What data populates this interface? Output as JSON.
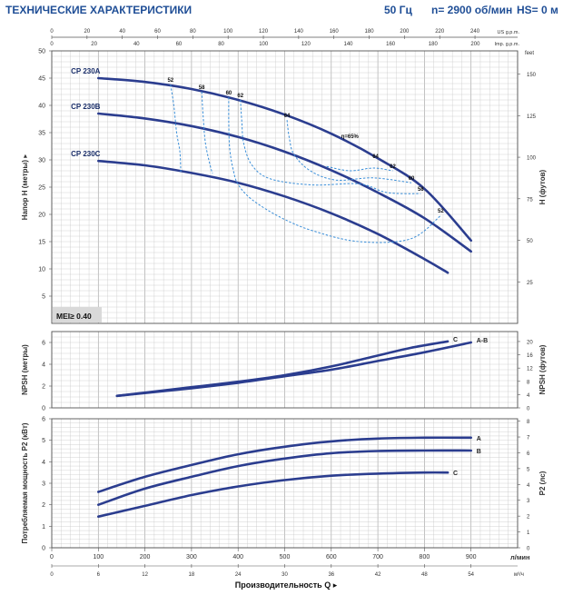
{
  "header": {
    "title": "ТЕХНИЧЕСКИЕ ХАРАКТЕРИСТИКИ",
    "frequency": "50 Гц",
    "speed": "n= 2900 об/мин",
    "hs": "HS= 0 м"
  },
  "chart_data": [
    {
      "type": "line",
      "name": "head",
      "ylabel": "Напор H (метры)",
      "ylabel_right": "H (футов)",
      "ylim": [
        0,
        50
      ],
      "yticks": [
        5,
        10,
        15,
        20,
        25,
        30,
        35,
        40,
        45,
        50
      ],
      "ylim_right": [
        0,
        164
      ],
      "yticks_right": [
        25,
        50,
        75,
        100,
        125,
        150
      ],
      "xlim": [
        0,
        1000
      ],
      "top_axis_us": {
        "unit": "US g.p.m.",
        "ticks": [
          0,
          20,
          40,
          60,
          80,
          100,
          120,
          140,
          160,
          180,
          200,
          220,
          240
        ]
      },
      "top_axis_imp": {
        "unit": "Imp. g.p.m.",
        "ticks": [
          0,
          20,
          40,
          60,
          80,
          100,
          120,
          140,
          160,
          180,
          200
        ]
      },
      "annotation": "MEI≥ 0.40",
      "series": [
        {
          "name": "CP 230A",
          "x": [
            100,
            200,
            300,
            400,
            500,
            600,
            700,
            800,
            900
          ],
          "y": [
            45.0,
            44.3,
            43.0,
            41.0,
            38.3,
            34.8,
            30.3,
            24.7,
            15.2
          ]
        },
        {
          "name": "CP 230B",
          "x": [
            100,
            200,
            300,
            400,
            500,
            600,
            700,
            800,
            900
          ],
          "y": [
            38.5,
            37.6,
            36.2,
            34.2,
            31.5,
            28.1,
            24.0,
            19.3,
            13.2
          ]
        },
        {
          "name": "CP 230C",
          "x": [
            100,
            200,
            300,
            400,
            500,
            600,
            700,
            800,
            850
          ],
          "y": [
            29.8,
            29.0,
            27.6,
            25.8,
            23.3,
            20.2,
            16.4,
            11.8,
            9.3
          ]
        }
      ],
      "efficiency_labels": [
        {
          "label": "52",
          "x": 255,
          "y": 43.8
        },
        {
          "label": "58",
          "x": 322,
          "y": 42.5
        },
        {
          "label": "60",
          "x": 380,
          "y": 41.5
        },
        {
          "label": "62",
          "x": 405,
          "y": 41.0
        },
        {
          "label": "64",
          "x": 505,
          "y": 37.3
        },
        {
          "label": "η=65%",
          "x": 640,
          "y": 33.5
        },
        {
          "label": "64",
          "x": 695,
          "y": 29.8
        },
        {
          "label": "62",
          "x": 732,
          "y": 28.0
        },
        {
          "label": "60",
          "x": 772,
          "y": 25.8
        },
        {
          "label": "58",
          "x": 792,
          "y": 23.8
        },
        {
          "label": "52",
          "x": 835,
          "y": 19.8
        }
      ],
      "efficiency_curves": [
        [
          [
            255,
            43.8
          ],
          [
            262,
            40
          ],
          [
            268,
            35
          ],
          [
            275,
            31.5
          ],
          [
            277,
            27.8
          ]
        ],
        [
          [
            322,
            42.5
          ],
          [
            325,
            38
          ],
          [
            330,
            33
          ],
          [
            340,
            29
          ],
          [
            345,
            27.5
          ]
        ],
        [
          [
            380,
            41.5
          ],
          [
            380,
            37
          ],
          [
            382,
            32
          ],
          [
            390,
            28
          ],
          [
            400,
            25.5
          ],
          [
            430,
            22.7
          ],
          [
            490,
            19.5
          ],
          [
            560,
            17
          ],
          [
            660,
            15
          ],
          [
            770,
            15.5
          ],
          [
            835,
            19.8
          ]
        ],
        [
          [
            405,
            41.0
          ],
          [
            408,
            37
          ],
          [
            412,
            33
          ],
          [
            430,
            29
          ],
          [
            470,
            26.5
          ],
          [
            560,
            25.4
          ],
          [
            660,
            25.6
          ],
          [
            720,
            24
          ],
          [
            792,
            23.8
          ]
        ],
        [
          [
            505,
            37.3
          ],
          [
            510,
            34
          ],
          [
            520,
            31
          ],
          [
            555,
            28
          ],
          [
            610,
            26.3
          ],
          [
            690,
            26.7
          ],
          [
            772,
            25.8
          ]
        ],
        [
          [
            590,
            28.8
          ],
          [
            640,
            28.0
          ],
          [
            690,
            28.5
          ],
          [
            732,
            28.0
          ]
        ]
      ]
    },
    {
      "type": "line",
      "name": "npsh",
      "ylabel": "NPSH (метры)",
      "ylabel_right": "NPSH (футов)",
      "ylim": [
        0,
        7
      ],
      "yticks": [
        0,
        2,
        4,
        6
      ],
      "ylim_right": [
        0,
        23
      ],
      "yticks_right": [
        0,
        4,
        8,
        12,
        16,
        20
      ],
      "xlim": [
        0,
        1000
      ],
      "series": [
        {
          "name": "C",
          "x": [
            140,
            300,
            400,
            500,
            600,
            700,
            770,
            850
          ],
          "y": [
            1.1,
            1.9,
            2.4,
            3.0,
            3.8,
            4.8,
            5.5,
            6.1
          ]
        },
        {
          "name": "A-B",
          "x": [
            140,
            300,
            400,
            500,
            600,
            700,
            800,
            900
          ],
          "y": [
            1.1,
            1.8,
            2.3,
            2.9,
            3.5,
            4.3,
            5.1,
            6.0
          ]
        }
      ]
    },
    {
      "type": "line",
      "name": "power",
      "ylabel": "Потребляемая мощность P2 (кВт)",
      "ylabel_right": "P2 (лс)",
      "ylim": [
        0,
        6
      ],
      "yticks": [
        0,
        1,
        2,
        3,
        4,
        5,
        6
      ],
      "ylim_right": [
        0,
        8.15
      ],
      "yticks_right": [
        0,
        1,
        2,
        3,
        4,
        5,
        6,
        7,
        8
      ],
      "xlim": [
        0,
        1000
      ],
      "series": [
        {
          "name": "A",
          "x": [
            100,
            200,
            300,
            400,
            500,
            600,
            700,
            800,
            900
          ],
          "y": [
            2.6,
            3.3,
            3.85,
            4.35,
            4.7,
            4.95,
            5.08,
            5.12,
            5.12
          ]
        },
        {
          "name": "B",
          "x": [
            100,
            200,
            300,
            400,
            500,
            600,
            700,
            800,
            900
          ],
          "y": [
            2.0,
            2.75,
            3.3,
            3.8,
            4.15,
            4.4,
            4.5,
            4.52,
            4.52
          ]
        },
        {
          "name": "C",
          "x": [
            100,
            200,
            300,
            400,
            500,
            600,
            700,
            800,
            850
          ],
          "y": [
            1.45,
            1.95,
            2.45,
            2.85,
            3.15,
            3.35,
            3.45,
            3.5,
            3.5
          ]
        }
      ]
    }
  ],
  "x_axis": {
    "lpm_ticks": [
      0,
      100,
      200,
      300,
      400,
      500,
      600,
      700,
      800,
      900
    ],
    "lpm_unit": "л/мин",
    "m3h_ticks": [
      0,
      6,
      12,
      18,
      24,
      30,
      36,
      42,
      48,
      54
    ],
    "m3h_unit": "м³/ч",
    "xlabel": "Производительность Q"
  },
  "colors": {
    "curve": "#2b3d8f",
    "efficiency": "#3a8ed8",
    "grid": "#c8c8c8",
    "title": "#1f4e96"
  }
}
